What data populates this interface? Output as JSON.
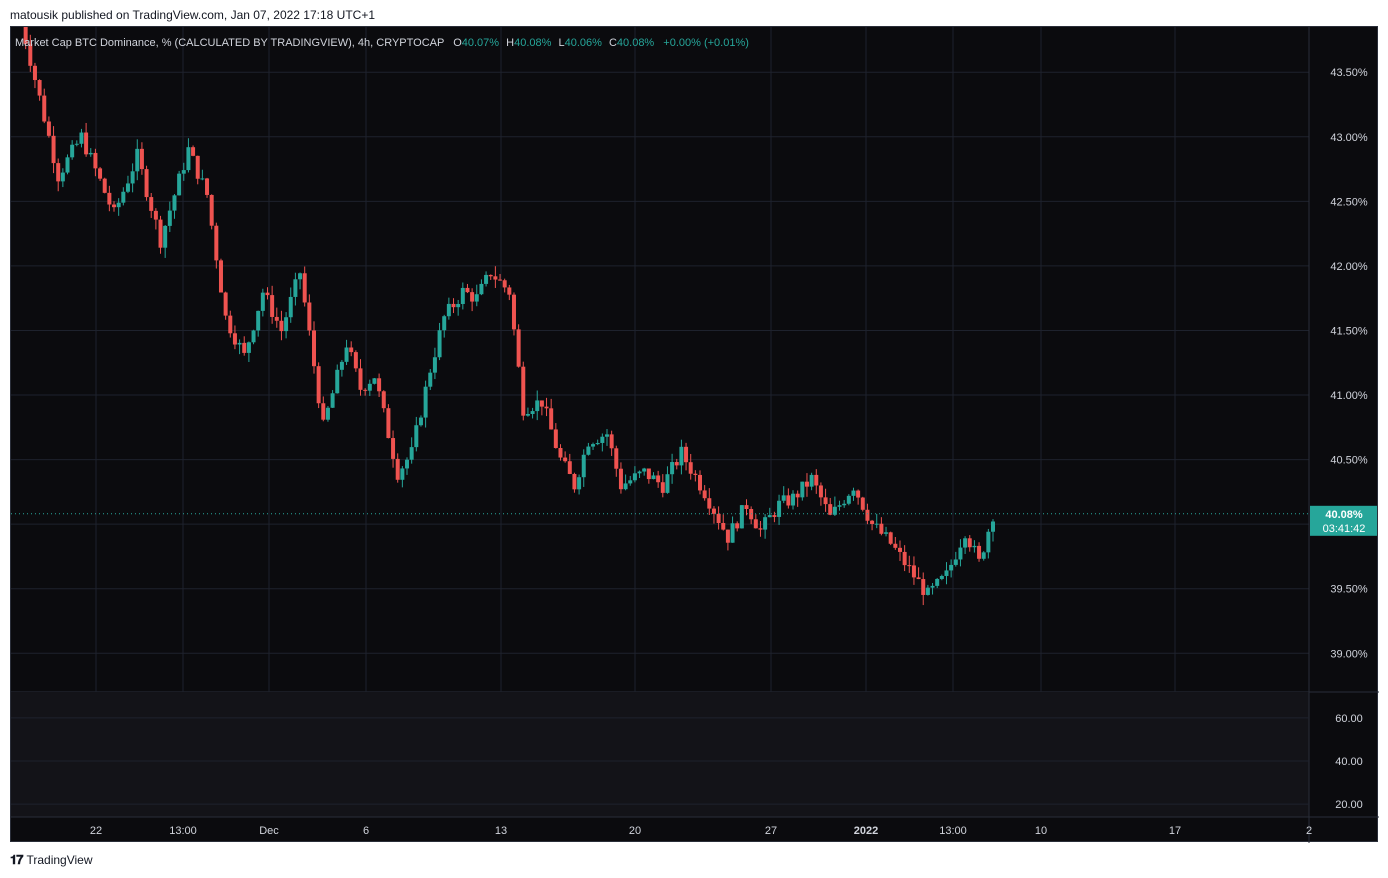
{
  "header": {
    "published": "matousik published on TradingView.com, Jan 07, 2022 17:18 UTC+1"
  },
  "legend": {
    "symbol": "Market Cap BTC Dominance, % (CALCULATED BY TRADINGVIEW), 4h, CRYPTOCAP",
    "o_label": "O",
    "o_value": "40.07%",
    "h_label": "H",
    "h_value": "40.08%",
    "l_label": "L",
    "l_value": "40.06%",
    "c_label": "C",
    "c_value": "40.08%",
    "change": "+0.00% (+0.01%)"
  },
  "price_tag": {
    "value": "40.08%",
    "countdown": "03:41:42"
  },
  "footer": {
    "brand": "TradingView"
  },
  "colors": {
    "up": "#26a69a",
    "down": "#ef5350",
    "background": "#0b0b0e",
    "grid": "#1e222d",
    "axis_text": "#d1d4dc"
  },
  "chart_data": {
    "type": "candlestick",
    "timeframe": "4h",
    "y_ticks": [
      "43.50%",
      "43.00%",
      "42.50%",
      "42.00%",
      "41.50%",
      "41.00%",
      "40.50%",
      "40.00%",
      "39.50%",
      "39.00%"
    ],
    "ylim": [
      38.7,
      43.85
    ],
    "x_ticks": [
      "22",
      "13:00",
      "Dec",
      "6",
      "13",
      "20",
      "27",
      "2022",
      "13:00",
      "10",
      "17",
      "2"
    ],
    "series": [
      {
        "name": "BTC Dominance %",
        "values": [
          [
            0,
            43.9
          ],
          [
            4,
            43.3
          ],
          [
            8,
            42.7
          ],
          [
            13,
            43.0
          ],
          [
            20,
            42.4
          ],
          [
            25,
            42.85
          ],
          [
            30,
            42.2
          ],
          [
            36,
            42.9
          ],
          [
            40,
            42.55
          ],
          [
            44,
            41.6
          ],
          [
            48,
            41.3
          ],
          [
            52,
            41.8
          ],
          [
            56,
            41.5
          ],
          [
            60,
            41.95
          ],
          [
            65,
            40.75
          ],
          [
            70,
            41.4
          ],
          [
            73,
            41.05
          ],
          [
            76,
            41.15
          ],
          [
            81,
            40.4
          ],
          [
            84,
            40.55
          ],
          [
            88,
            41.2
          ],
          [
            91,
            41.6
          ],
          [
            95,
            41.8
          ],
          [
            98,
            41.75
          ],
          [
            101,
            41.95
          ],
          [
            105,
            41.8
          ],
          [
            108,
            40.9
          ],
          [
            112,
            40.95
          ],
          [
            116,
            40.5
          ],
          [
            119,
            40.3
          ],
          [
            122,
            40.65
          ],
          [
            126,
            40.7
          ],
          [
            129,
            40.3
          ],
          [
            134,
            40.4
          ],
          [
            138,
            40.3
          ],
          [
            142,
            40.55
          ],
          [
            147,
            40.25
          ],
          [
            152,
            39.9
          ],
          [
            156,
            40.15
          ],
          [
            159,
            39.95
          ],
          [
            163,
            40.15
          ],
          [
            166,
            40.2
          ],
          [
            170,
            40.35
          ],
          [
            174,
            40.05
          ],
          [
            179,
            40.3
          ],
          [
            183,
            40.0
          ],
          [
            187,
            39.85
          ],
          [
            191,
            39.65
          ],
          [
            195,
            39.45
          ],
          [
            199,
            39.6
          ],
          [
            203,
            39.95
          ],
          [
            206,
            39.7
          ],
          [
            209,
            40.08
          ]
        ]
      }
    ],
    "lower_pane": {
      "y_ticks": [
        "60.00",
        "40.00",
        "20.00"
      ],
      "ylim": [
        14,
        72
      ]
    }
  }
}
